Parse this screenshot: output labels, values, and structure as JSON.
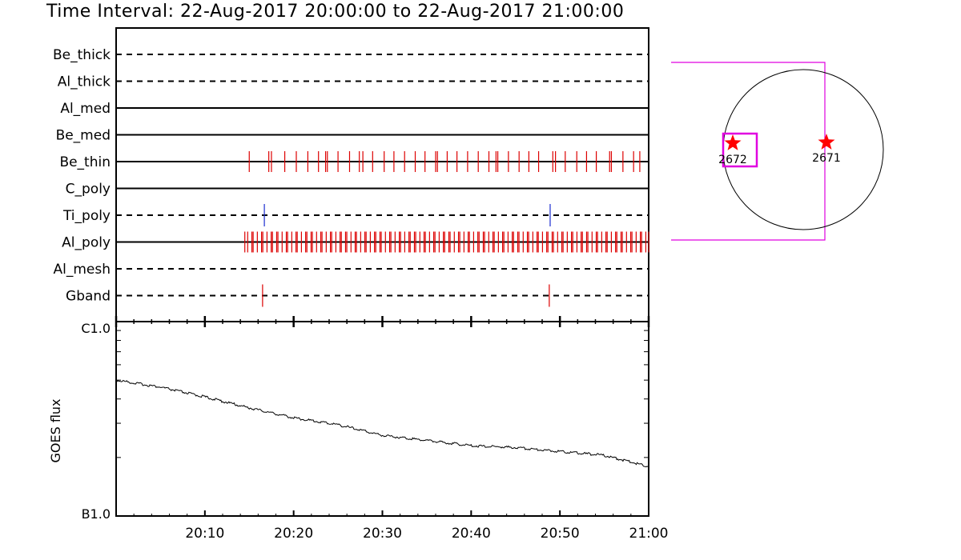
{
  "title": "Time Interval: 22-Aug-2017 20:00:00 to 22-Aug-2017 21:00:00",
  "colors": {
    "axis": "#000000",
    "hit_red": "#dd0000",
    "hit_blue": "#1a2bd0",
    "magenta": "#e000e0",
    "star": "#ff0000"
  },
  "chart_data": [
    {
      "type": "timeline",
      "x_range": [
        "20:00",
        "21:00"
      ],
      "x_tick_labels": [
        "20:10",
        "20:20",
        "20:30",
        "20:40",
        "20:50",
        "21:00"
      ],
      "channels": [
        {
          "name": "Be_thick",
          "style": "dashed",
          "events": []
        },
        {
          "name": "Al_thick",
          "style": "dashed",
          "events": []
        },
        {
          "name": "Al_med",
          "style": "solid",
          "events": []
        },
        {
          "name": "Be_med",
          "style": "solid",
          "events": []
        },
        {
          "name": "Be_thin",
          "style": "solid",
          "color": "red",
          "events": [
            15.0,
            17.2,
            17.5,
            19.0,
            20.3,
            21.6,
            22.8,
            23.6,
            23.8,
            25.0,
            26.3,
            27.4,
            27.8,
            28.9,
            30.2,
            31.3,
            32.5,
            33.7,
            34.8,
            36.0,
            36.2,
            37.3,
            38.4,
            39.6,
            40.8,
            42.0,
            42.8,
            43.0,
            44.2,
            45.4,
            46.5,
            47.6,
            49.2,
            49.5,
            50.6,
            51.9,
            53.0,
            54.1,
            55.6,
            55.8,
            57.1,
            58.3,
            59.0
          ]
        },
        {
          "name": "C_poly",
          "style": "solid",
          "events": []
        },
        {
          "name": "Ti_poly",
          "style": "dashed",
          "color": "blue",
          "events": [
            16.7,
            48.9
          ]
        },
        {
          "name": "Al_poly",
          "style": "solid",
          "color": "red",
          "events_range": [
            14.5,
            60.0
          ],
          "event_count": 130
        },
        {
          "name": "Al_mesh",
          "style": "dashed",
          "events": []
        },
        {
          "name": "Gband",
          "style": "dashed",
          "color": "red",
          "events": [
            16.5,
            48.8
          ]
        }
      ]
    },
    {
      "type": "line",
      "ylabel": "GOES flux",
      "y_tick_labels": [
        "C1.0",
        "B1.0"
      ],
      "ylim": [
        1e-07,
        1e-06
      ],
      "y_scale": "log",
      "x_range": [
        "20:00",
        "21:00"
      ],
      "x_tick_labels": [
        "20:10",
        "20:20",
        "20:30",
        "20:40",
        "20:50",
        "21:00"
      ],
      "series": [
        {
          "x": [
            0,
            5,
            10,
            15,
            20,
            25,
            30,
            35,
            40,
            45,
            50,
            55,
            60
          ],
          "values": [
            5e-07,
            4.6e-07,
            4.1e-07,
            3.6e-07,
            3.2e-07,
            2.95e-07,
            2.6e-07,
            2.45e-07,
            2.3e-07,
            2.25e-07,
            2.15e-07,
            2.05e-07,
            1.8e-07
          ]
        }
      ]
    }
  ],
  "sun_map": {
    "active_regions": [
      {
        "label": "2672",
        "selected": true
      },
      {
        "label": "2671",
        "selected": false
      }
    ]
  }
}
